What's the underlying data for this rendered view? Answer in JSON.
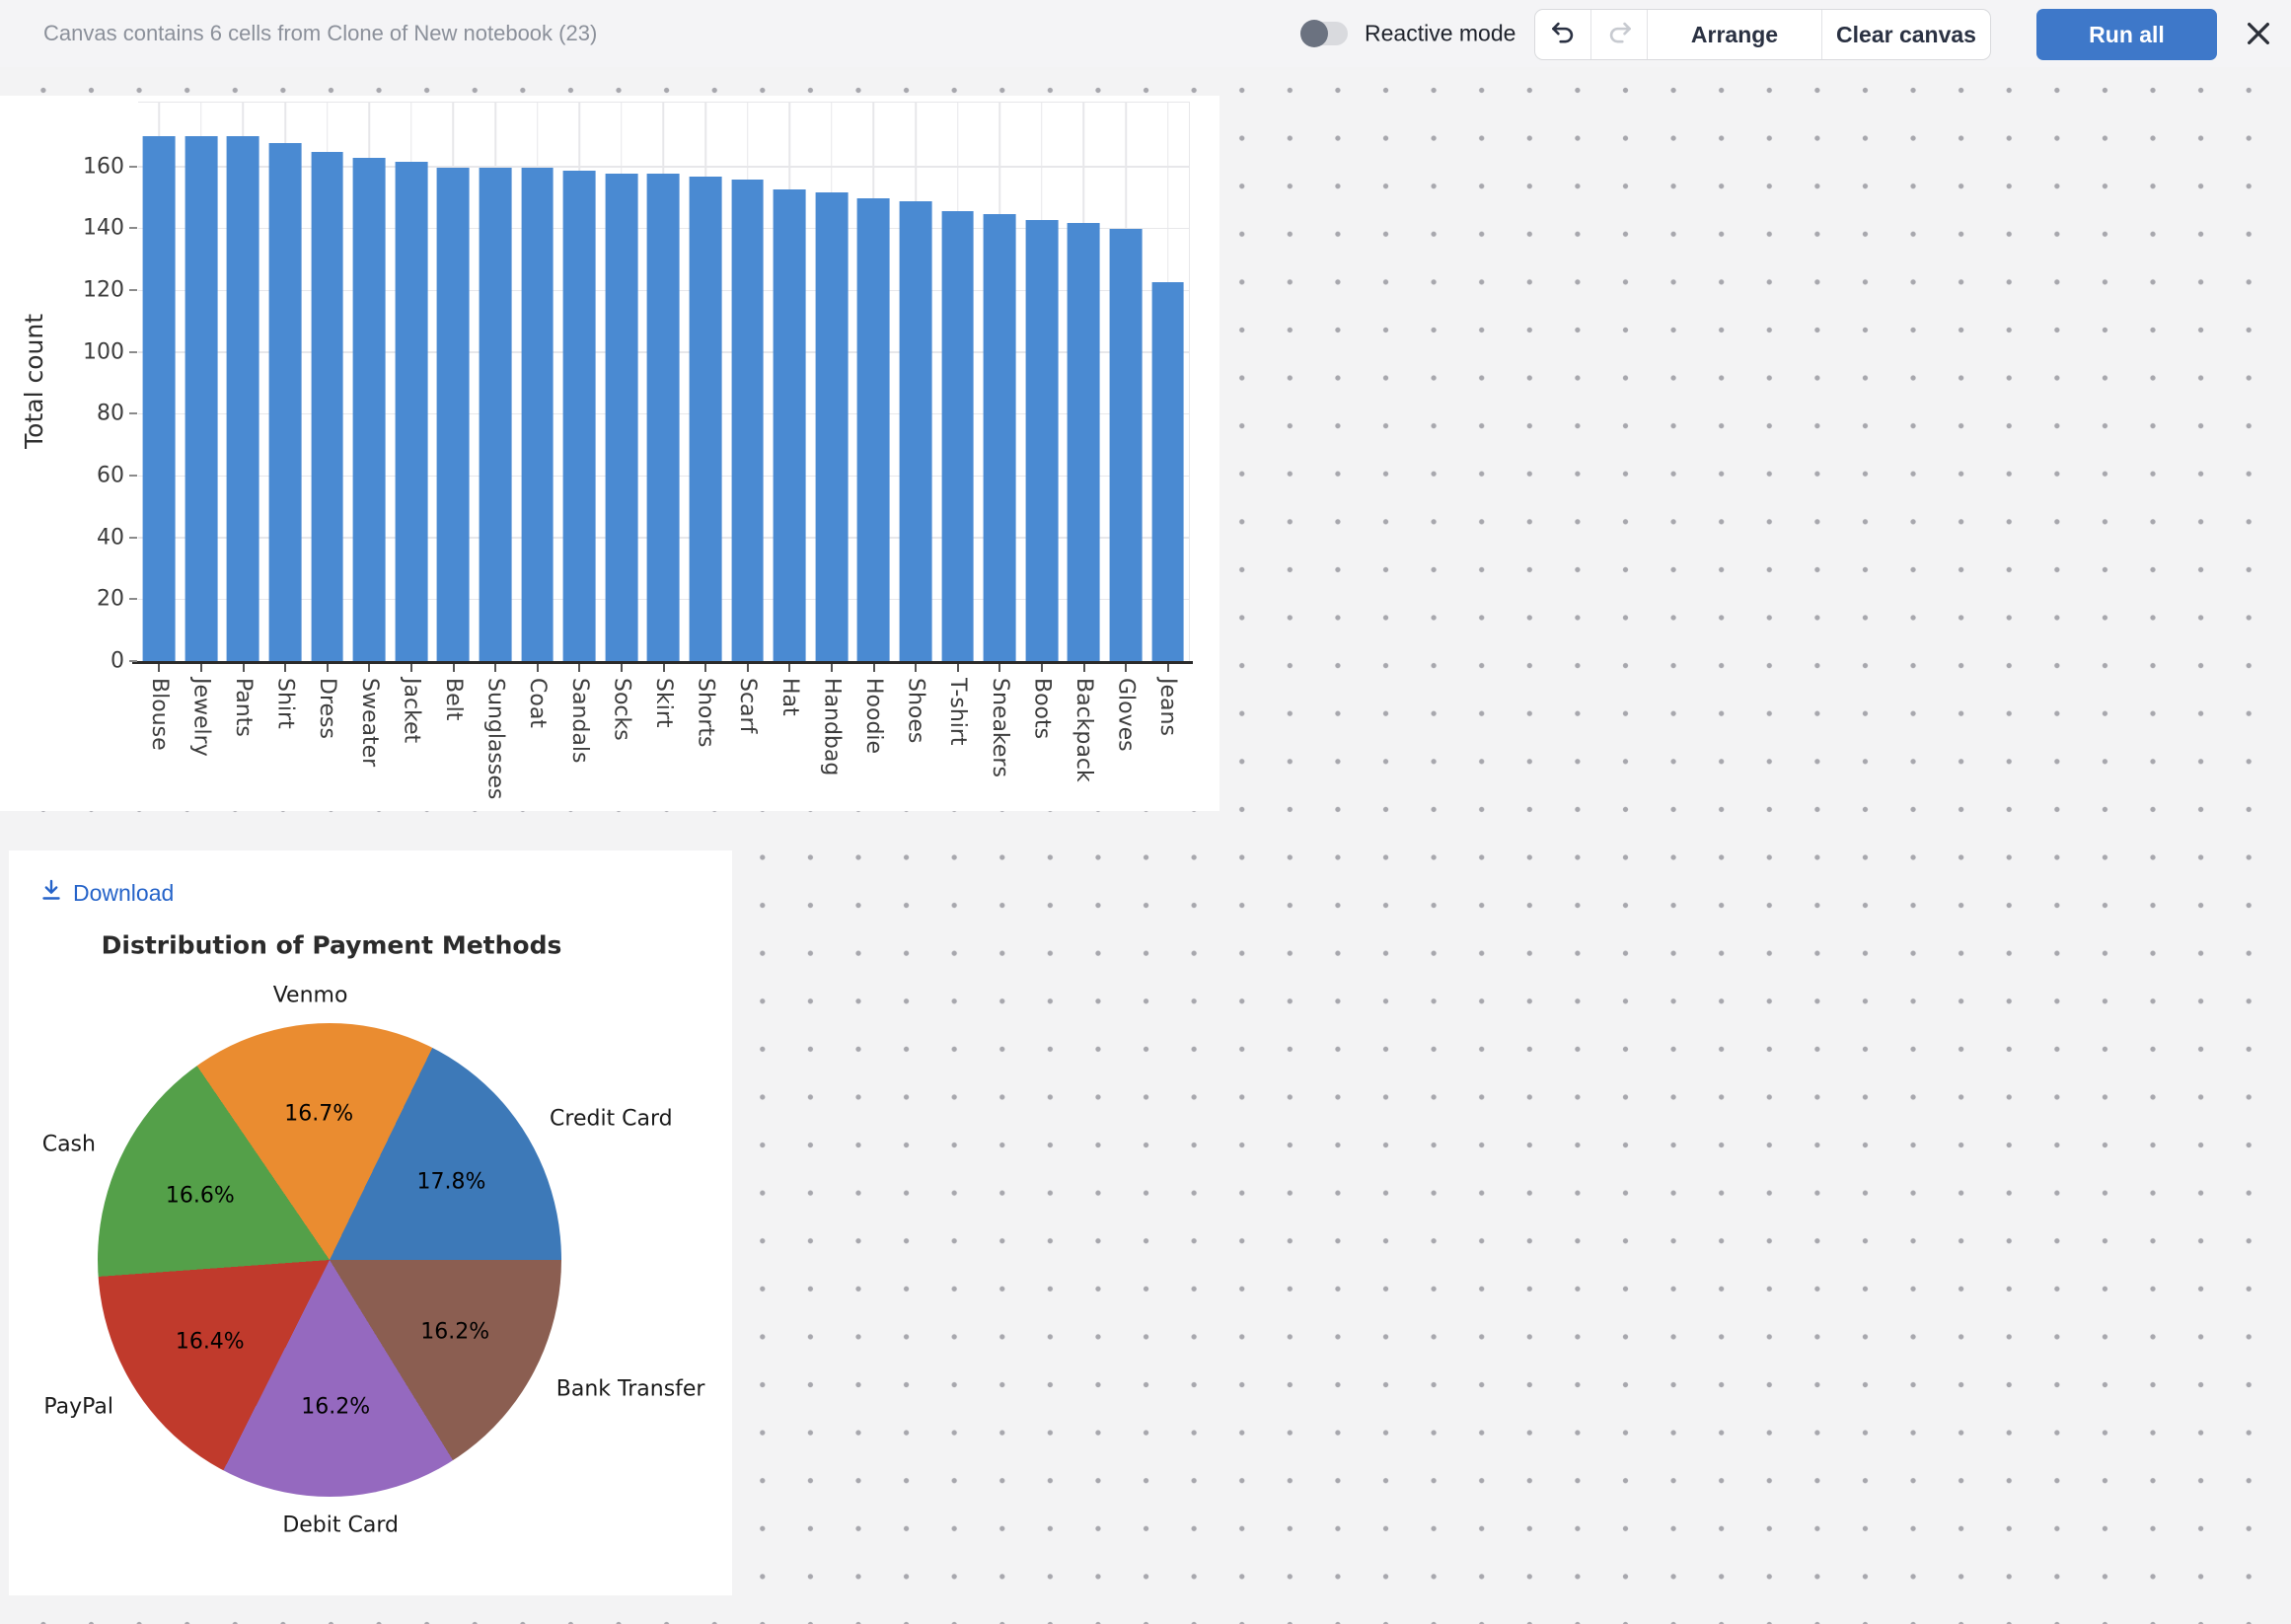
{
  "header": {
    "title": "Canvas contains 6 cells from Clone of New notebook (23)",
    "reactive_mode_label": "Reactive mode",
    "arrange_label": "Arrange",
    "clear_canvas_label": "Clear canvas",
    "run_all_label": "Run all",
    "icons": [
      "toggle-off",
      "undo-icon",
      "redo-icon",
      "close-icon"
    ]
  },
  "pie_cell": {
    "download_label": "Download"
  },
  "colors": {
    "bar_fill": "#4a8ad2",
    "run_all_bg": "#3e78c9",
    "link_blue": "#2563c9",
    "canvas_bg": "#f3f3f4",
    "dot_color": "#a7a7ad"
  },
  "chart_data": [
    {
      "type": "bar",
      "title": "",
      "xlabel": "",
      "ylabel": "Total count",
      "categories": [
        "Blouse",
        "Jewelry",
        "Pants",
        "Shirt",
        "Dress",
        "Sweater",
        "Jacket",
        "Belt",
        "Sunglasses",
        "Coat",
        "Sandals",
        "Socks",
        "Skirt",
        "Shorts",
        "Scarf",
        "Hat",
        "Handbag",
        "Hoodie",
        "Shoes",
        "T-shirt",
        "Sneakers",
        "Boots",
        "Backpack",
        "Gloves",
        "Jeans"
      ],
      "values": [
        170,
        170,
        170,
        168,
        165,
        163,
        162,
        160,
        160,
        160,
        159,
        158,
        158,
        157,
        156,
        153,
        152,
        150,
        149,
        146,
        145,
        143,
        142,
        140,
        123
      ],
      "yticks": [
        0,
        20,
        40,
        60,
        80,
        100,
        120,
        140,
        160
      ],
      "ylim": [
        0,
        181
      ],
      "grid": true,
      "bar_color": "#4a8ad2"
    },
    {
      "type": "pie",
      "title": "Distribution of Payment Methods",
      "labels": [
        "Credit Card",
        "Venmo",
        "Cash",
        "PayPal",
        "Debit Card",
        "Bank Transfer"
      ],
      "values": [
        17.8,
        16.7,
        16.6,
        16.4,
        16.2,
        16.2
      ],
      "pct_labels": [
        "17.8%",
        "16.7%",
        "16.6%",
        "16.4%",
        "16.2%",
        "16.2%"
      ],
      "slice_colors": [
        "#3d79b8",
        "#ea8c30",
        "#54a049",
        "#c03a2c",
        "#9569bf",
        "#8b5e51"
      ],
      "start_angle_deg": 0,
      "direction": "counterclockwise",
      "legend_position": "none"
    }
  ]
}
